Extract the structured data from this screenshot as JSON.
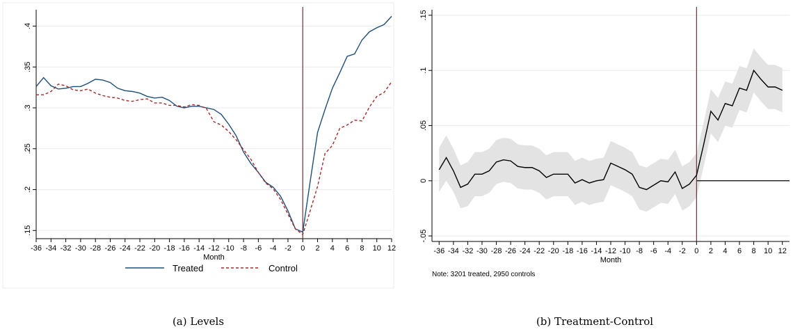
{
  "chart_data": [
    {
      "type": "line",
      "caption": "(a) Levels",
      "xlabel": "Month",
      "ylabel": "",
      "xlim": [
        -36,
        12
      ],
      "ylim": [
        0.14,
        0.42
      ],
      "x_ticks": [
        -36,
        -34,
        -32,
        -30,
        -28,
        -26,
        -24,
        -22,
        -20,
        -18,
        -16,
        -14,
        -12,
        -10,
        -8,
        -6,
        -4,
        -2,
        0,
        2,
        4,
        6,
        8,
        10,
        12
      ],
      "x_tick_labels": [
        "-36",
        "-34",
        "-32",
        "-30",
        "-28",
        "-26",
        "-24",
        "-22",
        "-20",
        "-18",
        "-16",
        "-14",
        "-12",
        "-10",
        "-8",
        "-6",
        "-4",
        "-2",
        "0",
        "2",
        "4",
        "6",
        "8",
        "10",
        "12"
      ],
      "y_ticks": [
        0.15,
        0.2,
        0.25,
        0.3,
        0.35,
        0.4
      ],
      "y_tick_labels": [
        ".15",
        ".2",
        ".25",
        ".3",
        ".35",
        ".4"
      ],
      "grid": "horizontal",
      "vline_x": 0,
      "legend_position": "bottom",
      "x": [
        -36,
        -35,
        -34,
        -33,
        -32,
        -31,
        -30,
        -29,
        -28,
        -27,
        -26,
        -25,
        -24,
        -23,
        -22,
        -21,
        -20,
        -19,
        -18,
        -17,
        -16,
        -15,
        -14,
        -13,
        -12,
        -11,
        -10,
        -9,
        -8,
        -7,
        -6,
        -5,
        -4,
        -3,
        -2,
        -1,
        0,
        1,
        2,
        3,
        4,
        5,
        6,
        7,
        8,
        9,
        10,
        11,
        12
      ],
      "series": [
        {
          "name": "Treated",
          "color": "#1f4e79",
          "dash": "solid",
          "values": [
            0.326,
            0.337,
            0.327,
            0.323,
            0.324,
            0.326,
            0.326,
            0.33,
            0.335,
            0.334,
            0.331,
            0.324,
            0.321,
            0.32,
            0.318,
            0.314,
            0.312,
            0.313,
            0.309,
            0.302,
            0.3,
            0.302,
            0.302,
            0.3,
            0.298,
            0.292,
            0.28,
            0.266,
            0.246,
            0.232,
            0.221,
            0.209,
            0.203,
            0.192,
            0.174,
            0.152,
            0.148,
            0.21,
            0.27,
            0.298,
            0.324,
            0.343,
            0.363,
            0.366,
            0.383,
            0.393,
            0.398,
            0.402,
            0.412
          ]
        },
        {
          "name": "Control",
          "color": "#a52a2a",
          "dash": "dashed",
          "values": [
            0.316,
            0.316,
            0.32,
            0.329,
            0.327,
            0.322,
            0.321,
            0.323,
            0.318,
            0.315,
            0.313,
            0.312,
            0.309,
            0.308,
            0.31,
            0.311,
            0.306,
            0.306,
            0.303,
            0.303,
            0.301,
            0.304,
            0.303,
            0.299,
            0.283,
            0.279,
            0.271,
            0.261,
            0.249,
            0.237,
            0.221,
            0.208,
            0.201,
            0.188,
            0.17,
            0.152,
            0.145,
            0.174,
            0.204,
            0.244,
            0.254,
            0.275,
            0.279,
            0.285,
            0.284,
            0.301,
            0.314,
            0.319,
            0.332
          ]
        }
      ]
    },
    {
      "type": "line",
      "caption": "(b) Treatment-Control",
      "xlabel": "Month",
      "ylabel": "",
      "note": "Note: 3201 treated, 2950 controls",
      "xlim": [
        -37,
        13
      ],
      "ylim": [
        -0.055,
        0.155
      ],
      "x_ticks": [
        -36,
        -34,
        -32,
        -30,
        -28,
        -26,
        -24,
        -22,
        -20,
        -18,
        -16,
        -14,
        -12,
        -10,
        -8,
        -6,
        -4,
        -2,
        0,
        2,
        4,
        6,
        8,
        10,
        12
      ],
      "x_tick_labels": [
        "-36",
        "-34",
        "-32",
        "-30",
        "-28",
        "-26",
        "-24",
        "-22",
        "-20",
        "-18",
        "-16",
        "-14",
        "-12",
        "-10",
        "-8",
        "-6",
        "-4",
        "-2",
        "0",
        "2",
        "4",
        "6",
        "8",
        "10",
        "12"
      ],
      "y_ticks": [
        -0.05,
        0,
        0.05,
        0.1,
        0.15
      ],
      "y_tick_labels": [
        "-.05",
        "0",
        ".05",
        ".1",
        ".15"
      ],
      "grid": "horizontal",
      "vline_x": 0,
      "hline_y": 0,
      "x": [
        -36,
        -35,
        -34,
        -33,
        -32,
        -31,
        -30,
        -29,
        -28,
        -27,
        -26,
        -25,
        -24,
        -23,
        -22,
        -21,
        -20,
        -19,
        -18,
        -17,
        -16,
        -15,
        -14,
        -13,
        -12,
        -11,
        -10,
        -9,
        -8,
        -7,
        -6,
        -5,
        -4,
        -3,
        -2,
        -1,
        0,
        1,
        2,
        3,
        4,
        5,
        6,
        7,
        8,
        9,
        10,
        11,
        12
      ],
      "series": [
        {
          "name": "",
          "color": "#000000",
          "values": [
            0.01,
            0.021,
            0.009,
            -0.006,
            -0.003,
            0.006,
            0.006,
            0.009,
            0.017,
            0.019,
            0.018,
            0.013,
            0.012,
            0.012,
            0.009,
            0.003,
            0.006,
            0.006,
            0.006,
            -0.002,
            0.001,
            -0.002,
            0.0,
            0.001,
            0.016,
            0.013,
            0.01,
            0.006,
            -0.006,
            -0.008,
            -0.004,
            0.0,
            -0.001,
            0.008,
            -0.007,
            -0.003,
            0.005,
            0.033,
            0.063,
            0.055,
            0.07,
            0.068,
            0.084,
            0.082,
            0.1,
            0.092,
            0.085,
            0.085,
            0.082
          ],
          "ci_lower": [
            -0.01,
            0.0,
            -0.01,
            -0.025,
            -0.023,
            -0.014,
            -0.014,
            -0.011,
            -0.003,
            -0.001,
            -0.002,
            -0.007,
            -0.008,
            -0.008,
            -0.011,
            -0.017,
            -0.014,
            -0.014,
            -0.014,
            -0.022,
            -0.019,
            -0.022,
            -0.02,
            -0.019,
            -0.004,
            -0.007,
            -0.01,
            -0.014,
            -0.026,
            -0.028,
            -0.024,
            -0.02,
            -0.021,
            -0.012,
            -0.027,
            -0.023,
            -0.015,
            0.013,
            0.043,
            0.035,
            0.05,
            0.048,
            0.064,
            0.062,
            0.08,
            0.072,
            0.065,
            0.065,
            0.062
          ],
          "ci_upper": [
            0.03,
            0.041,
            0.029,
            0.014,
            0.017,
            0.026,
            0.026,
            0.029,
            0.037,
            0.039,
            0.038,
            0.033,
            0.032,
            0.032,
            0.029,
            0.023,
            0.026,
            0.026,
            0.026,
            0.018,
            0.021,
            0.018,
            0.02,
            0.021,
            0.036,
            0.033,
            0.03,
            0.026,
            0.014,
            0.012,
            0.016,
            0.02,
            0.019,
            0.028,
            0.013,
            0.017,
            0.025,
            0.053,
            0.083,
            0.075,
            0.09,
            0.088,
            0.104,
            0.102,
            0.12,
            0.112,
            0.105,
            0.105,
            0.102
          ]
        }
      ]
    }
  ]
}
